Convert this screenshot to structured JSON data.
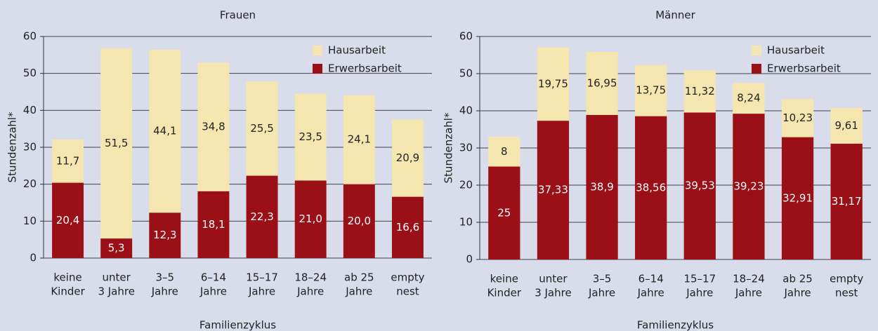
{
  "chart_data": [
    {
      "type": "bar",
      "stacked": true,
      "title": "Frauen",
      "xlabel": "Familienzyklus",
      "ylabel": "Stundenzahl*",
      "categories": [
        [
          "keine",
          "Kinder"
        ],
        [
          "unter",
          "3 Jahre"
        ],
        [
          "3–5",
          "Jahre"
        ],
        [
          "6–14",
          "Jahre"
        ],
        [
          "15–17",
          "Jahre"
        ],
        [
          "18–24",
          "Jahre"
        ],
        [
          "ab 25",
          "Jahre"
        ],
        [
          "empty",
          "nest"
        ]
      ],
      "series": [
        {
          "name": "Erwerbsarbeit",
          "color": "#9b0f16",
          "values": [
            20.4,
            5.3,
            12.3,
            18.1,
            22.3,
            21.0,
            20.0,
            16.6
          ],
          "value_labels": [
            "20,4",
            "5,3",
            "12,3",
            "18,1",
            "22,3",
            "21,0",
            "20,0",
            "16,6"
          ]
        },
        {
          "name": "Hausarbeit",
          "color": "#f5e6b0",
          "values": [
            11.7,
            51.5,
            44.1,
            34.8,
            25.5,
            23.5,
            24.1,
            20.9
          ],
          "value_labels": [
            "11,7",
            "51,5",
            "44,1",
            "34,8",
            "25,5",
            "23,5",
            "24,1",
            "20,9"
          ]
        }
      ],
      "ylim": [
        0,
        60
      ],
      "yticks": [
        0,
        10,
        20,
        30,
        40,
        50,
        60
      ],
      "grid": true,
      "legend": "upper right"
    },
    {
      "type": "bar",
      "stacked": true,
      "title": "Männer",
      "xlabel": "Familienzyklus",
      "ylabel": "Stundenzahl*",
      "categories": [
        [
          "keine",
          "Kinder"
        ],
        [
          "unter",
          "3 Jahre"
        ],
        [
          "3–5",
          "Jahre"
        ],
        [
          "6–14",
          "Jahre"
        ],
        [
          "15–17",
          "Jahre"
        ],
        [
          "18–24",
          "Jahre"
        ],
        [
          "ab 25",
          "Jahre"
        ],
        [
          "empty",
          "nest"
        ]
      ],
      "series": [
        {
          "name": "Erwerbsarbeit",
          "color": "#9b0f16",
          "values": [
            25,
            37.33,
            38.9,
            38.56,
            39.53,
            39.23,
            32.91,
            31.17
          ],
          "value_labels": [
            "25",
            "37,33",
            "38,9",
            "38,56",
            "39,53",
            "39,23",
            "32,91",
            "31,17"
          ]
        },
        {
          "name": "Hausarbeit",
          "color": "#f5e6b0",
          "values": [
            8,
            19.75,
            16.95,
            13.75,
            11.32,
            8.24,
            10.23,
            9.61
          ],
          "value_labels": [
            "8",
            "19,75",
            "16,95",
            "13,75",
            "11,32",
            "8,24",
            "10,23",
            "9,61"
          ]
        }
      ],
      "ylim": [
        0,
        60
      ],
      "yticks": [
        0,
        10,
        20,
        30,
        40,
        50,
        60
      ],
      "grid": true,
      "legend": "upper right"
    }
  ]
}
